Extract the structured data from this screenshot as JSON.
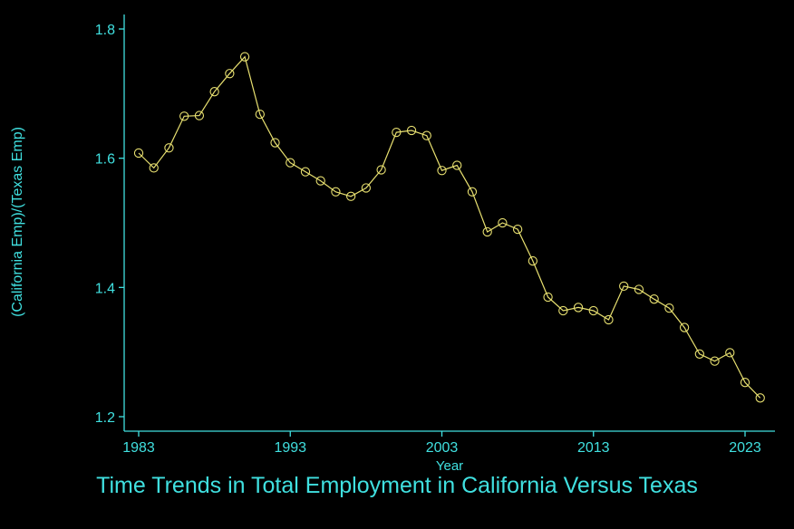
{
  "chart_data": {
    "type": "line",
    "title": "Time Trends in Total Employment in California Versus Texas",
    "xlabel": "Year",
    "ylabel": "(California Emp)/(Texas Emp)",
    "xlim": [
      1983,
      2024
    ],
    "ylim": [
      1.2,
      1.8
    ],
    "x_ticks": [
      1983,
      1993,
      2003,
      2013,
      2023
    ],
    "y_ticks": [
      1.2,
      1.4,
      1.6,
      1.8
    ],
    "grid": false,
    "series": [
      {
        "x": [
          1983,
          1984,
          1985,
          1986,
          1987,
          1988,
          1989,
          1990,
          1991,
          1992,
          1993,
          1994,
          1995,
          1996,
          1997,
          1998,
          1999,
          2000,
          2001,
          2002,
          2003,
          2004,
          2005,
          2006,
          2007,
          2008,
          2009,
          2010,
          2011,
          2012,
          2013,
          2014,
          2015,
          2016,
          2017,
          2018,
          2019,
          2020,
          2021,
          2022,
          2023,
          2024
        ],
        "y": [
          1.608,
          1.585,
          1.616,
          1.665,
          1.666,
          1.703,
          1.731,
          1.757,
          1.668,
          1.624,
          1.593,
          1.579,
          1.565,
          1.548,
          1.541,
          1.554,
          1.582,
          1.64,
          1.643,
          1.635,
          1.581,
          1.589,
          1.548,
          1.486,
          1.5,
          1.49,
          1.441,
          1.385,
          1.364,
          1.369,
          1.364,
          1.35,
          1.402,
          1.397,
          1.382,
          1.368,
          1.338,
          1.297,
          1.286,
          1.299,
          1.253,
          1.229
        ]
      }
    ],
    "colors": {
      "background": "#000000",
      "axis": "#40e0e0",
      "series": "#e8e070"
    }
  }
}
